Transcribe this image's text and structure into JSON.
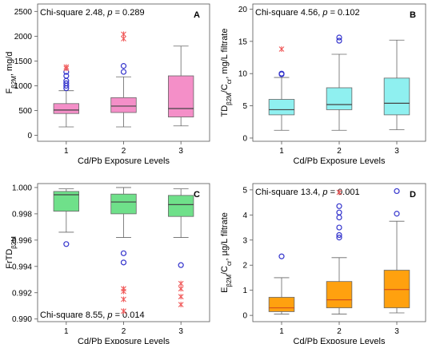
{
  "chart_data": [
    {
      "type": "box",
      "panel_label": "A",
      "stat_text": "Chi-square 2.48, p = 0.289",
      "ylabel": "Fβ2M, mg/d",
      "xlabel": "Cd/Pb Exposure Levels",
      "categories": [
        "1",
        "2",
        "3"
      ],
      "ylim": [
        -120,
        2650
      ],
      "yticks": [
        0,
        500,
        1000,
        1500,
        2000,
        2500
      ],
      "color": "#f48fc8",
      "boxes": [
        {
          "category": "1",
          "whisker_low": 170,
          "q1": 440,
          "median": 510,
          "q3": 640,
          "whisker_high": 900,
          "outliers_circle": [
            950,
            1000,
            1050,
            1100,
            1200,
            1280
          ],
          "outliers_star": [
            1350,
            1380
          ]
        },
        {
          "category": "2",
          "whisker_low": 170,
          "q1": 460,
          "median": 590,
          "q3": 760,
          "whisker_high": 1180,
          "outliers_circle": [
            1280,
            1400
          ],
          "outliers_star": [
            1950,
            2040
          ]
        },
        {
          "category": "3",
          "whisker_low": 190,
          "q1": 370,
          "median": 540,
          "q3": 1200,
          "whisker_high": 1800,
          "outliers_circle": [],
          "outliers_star": []
        }
      ]
    },
    {
      "type": "box",
      "panel_label": "B",
      "stat_text": "Chi-square 4.56, p = 0.102",
      "ylabel": "TDβ2M/Ccr, mg/L filtrate",
      "xlabel": "Cd/Pb Exposure Levels",
      "categories": [
        "1",
        "2",
        "3"
      ],
      "ylim": [
        -0.5,
        20.8
      ],
      "yticks": [
        0,
        5,
        10,
        15,
        20
      ],
      "color": "#8ff0f0",
      "boxes": [
        {
          "category": "1",
          "whisker_low": 1.2,
          "q1": 3.6,
          "median": 4.4,
          "q3": 6.0,
          "whisker_high": 9.4,
          "outliers_circle": [
            9.9,
            10.0
          ],
          "outliers_star": [
            13.8
          ]
        },
        {
          "category": "2",
          "whisker_low": 1.2,
          "q1": 4.4,
          "median": 5.2,
          "q3": 7.8,
          "whisker_high": 13.0,
          "outliers_circle": [
            15.1,
            15.6
          ],
          "outliers_star": []
        },
        {
          "category": "3",
          "whisker_low": 1.3,
          "q1": 3.6,
          "median": 5.4,
          "q3": 9.3,
          "whisker_high": 15.2,
          "outliers_circle": [],
          "outliers_star": []
        }
      ]
    },
    {
      "type": "box",
      "panel_label": "C",
      "stat_text": "Chi-square 8.55, p = 0.014",
      "ylabel": "FrTDβ2M",
      "xlabel": "Cd/Pb Exposure Levels",
      "categories": [
        "1",
        "2",
        "3"
      ],
      "ylim": [
        0.9898,
        1.0003
      ],
      "yticks": [
        0.99,
        0.992,
        0.994,
        0.996,
        0.998,
        1.0
      ],
      "ytick_labels": [
        "0.990",
        "0.992",
        "0.994",
        "0.996",
        "0.998",
        "1.000"
      ],
      "color": "#6fe08a",
      "boxes": [
        {
          "category": "1",
          "whisker_low": 0.9966,
          "q1": 0.9982,
          "median": 0.99945,
          "q3": 0.9997,
          "whisker_high": 0.9999,
          "outliers_circle": [
            0.9957
          ],
          "outliers_star": []
        },
        {
          "category": "2",
          "whisker_low": 0.9962,
          "q1": 0.998,
          "median": 0.9989,
          "q3": 0.9995,
          "whisker_high": 1.0,
          "outliers_circle": [
            0.995,
            0.9943
          ],
          "outliers_star": [
            0.9923,
            0.9921,
            0.9915,
            0.9906
          ]
        },
        {
          "category": "3",
          "whisker_low": 0.9962,
          "q1": 0.9978,
          "median": 0.9987,
          "q3": 0.9994,
          "whisker_high": 0.9999,
          "outliers_circle": [
            0.9941
          ],
          "outliers_star": [
            0.9927,
            0.9923,
            0.9917,
            0.9911
          ]
        }
      ]
    },
    {
      "type": "box",
      "panel_label": "D",
      "stat_text": "Chi-square 13.4, p = 0.001",
      "ylabel": "Eβ2M/Ccr, µg/L filtrate",
      "xlabel": "Cd/Pb Exposure Levels",
      "categories": [
        "1",
        "2",
        "3"
      ],
      "ylim": [
        -0.25,
        5.25
      ],
      "yticks": [
        0,
        1,
        2,
        3,
        4,
        5
      ],
      "color": "#ffa10f",
      "boxes": [
        {
          "category": "1",
          "whisker_low": 0.05,
          "q1": 0.15,
          "median": 0.3,
          "q3": 0.72,
          "whisker_high": 1.5,
          "outliers_circle": [
            2.35
          ],
          "outliers_star": []
        },
        {
          "category": "2",
          "whisker_low": 0.05,
          "q1": 0.3,
          "median": 0.62,
          "q3": 1.35,
          "whisker_high": 2.3,
          "outliers_circle": [
            3.1,
            3.2,
            3.5,
            3.9,
            4.1,
            4.35
          ],
          "outliers_star": [
            4.9
          ]
        },
        {
          "category": "3",
          "whisker_low": 0.1,
          "q1": 0.3,
          "median": 1.03,
          "q3": 1.8,
          "whisker_high": 3.75,
          "outliers_circle": [
            4.05,
            4.95
          ],
          "outliers_star": []
        }
      ]
    }
  ]
}
